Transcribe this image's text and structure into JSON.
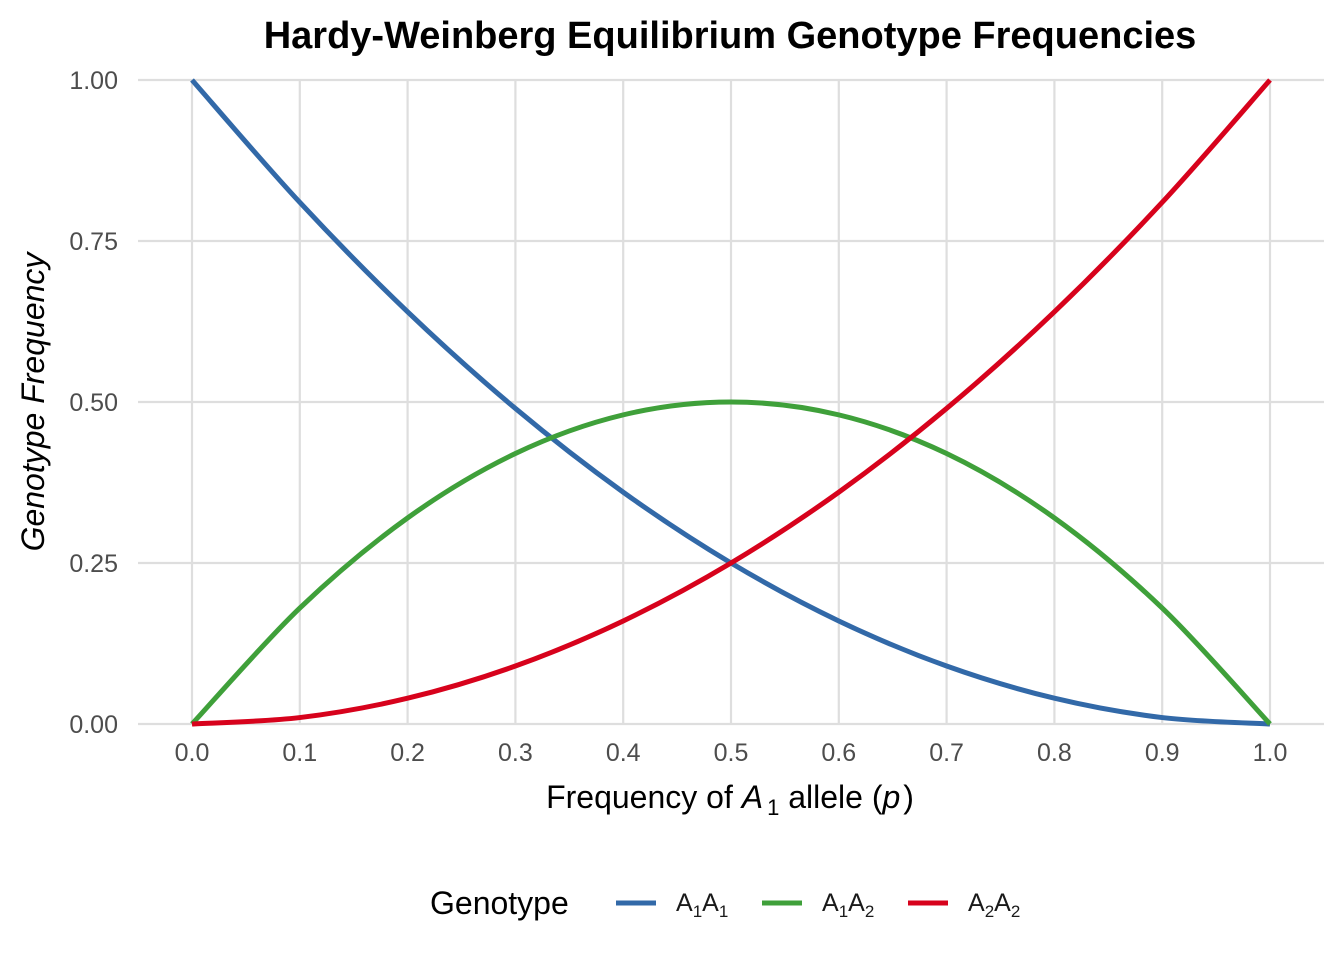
{
  "chart_data": {
    "type": "line",
    "title": "Hardy-Weinberg Equilibrium Genotype Frequencies",
    "xlabel": {
      "prefix": "Frequency of ",
      "var": "A",
      "sub": "1",
      "mid": " allele (",
      "var2": "p",
      "suffix": ")"
    },
    "ylabel": "Genotype Frequency",
    "xlim": [
      0,
      1
    ],
    "ylim": [
      0,
      1
    ],
    "x_ticks": [
      "0.0",
      "0.1",
      "0.2",
      "0.3",
      "0.4",
      "0.5",
      "0.6",
      "0.7",
      "0.8",
      "0.9",
      "1.0"
    ],
    "y_ticks": [
      "0.00",
      "0.25",
      "0.50",
      "0.75",
      "1.00"
    ],
    "grid": true,
    "legend": {
      "title": "Genotype",
      "position": "bottom"
    },
    "x": [
      0.0,
      0.1,
      0.2,
      0.3,
      0.4,
      0.5,
      0.6,
      0.7,
      0.8,
      0.9,
      1.0
    ],
    "series": [
      {
        "name": "A1A1",
        "label_parts": [
          [
            "A",
            ""
          ],
          [
            "1",
            "sub"
          ],
          [
            "A",
            ""
          ],
          [
            "1",
            "sub"
          ]
        ],
        "color": "#3269a8",
        "values": [
          1.0,
          0.81,
          0.64,
          0.49,
          0.36,
          0.25,
          0.16,
          0.09,
          0.04,
          0.01,
          0.0
        ]
      },
      {
        "name": "A1A2",
        "label_parts": [
          [
            "A",
            ""
          ],
          [
            "1",
            "sub"
          ],
          [
            "A",
            ""
          ],
          [
            "2",
            "sub"
          ]
        ],
        "color": "#3fa03a",
        "values": [
          0.0,
          0.18,
          0.32,
          0.42,
          0.48,
          0.5,
          0.48,
          0.42,
          0.32,
          0.18,
          0.0
        ]
      },
      {
        "name": "A2A2",
        "label_parts": [
          [
            "A",
            ""
          ],
          [
            "2",
            "sub"
          ],
          [
            "A",
            ""
          ],
          [
            "2",
            "sub"
          ]
        ],
        "color": "#d7021c",
        "values": [
          0.0,
          0.01,
          0.04,
          0.09,
          0.16,
          0.25,
          0.36,
          0.49,
          0.64,
          0.81,
          1.0
        ]
      }
    ]
  }
}
